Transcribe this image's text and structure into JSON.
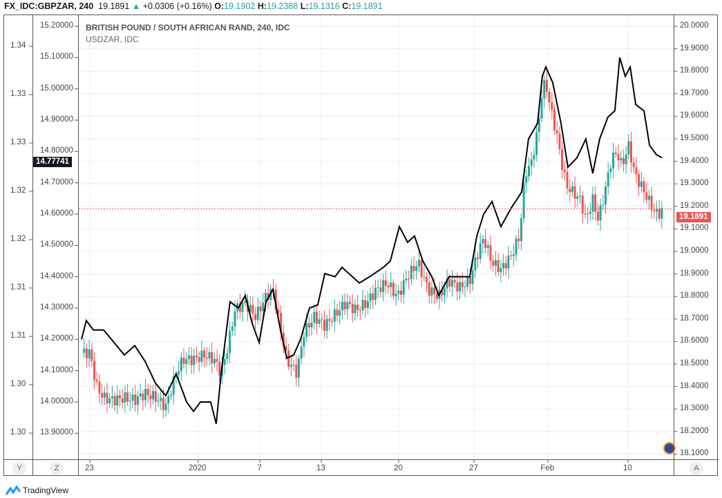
{
  "header": {
    "symbol": "FX_IDC:GBPZAR, 240",
    "last": "19.1891",
    "change": "+0.0306 (+0.16%)",
    "o_label": "O:",
    "o": "19.1902",
    "h_label": "H:",
    "h": "19.2388",
    "l_label": "L:",
    "l": "19.1316",
    "c_label": "C:",
    "c": "19.1891"
  },
  "legend": {
    "title": "BRITISH POUND / SOUTH AFRICAN RAND, 240, IDC",
    "compare": "USDZAR, IDC"
  },
  "buttons": {
    "y": "Y",
    "z": "Z",
    "a": "A"
  },
  "brand": "TradingView",
  "colors": {
    "up": "#26a69a",
    "down": "#ef5350",
    "line": "#000000",
    "grid": "#e6eef5"
  },
  "chart_data": {
    "type": "candlestick+line",
    "title": "BRITISH POUND / SOUTH AFRICAN RAND, 240, IDC",
    "left_axis_1": {
      "ticks": [
        "1.34",
        "1.33",
        "1.33",
        "1.32",
        "1.32",
        "1.31",
        "1.31",
        "1.30",
        "1.30"
      ]
    },
    "left_axis_2": {
      "ticks": [
        "15.20000",
        "15.10000",
        "15.00000",
        "14.90000",
        "14.80000",
        "14.70000",
        "14.60000",
        "14.50000",
        "14.40000",
        "14.30000",
        "14.20000",
        "14.10000",
        "14.00000",
        "13.90000"
      ],
      "range": [
        13.83,
        15.24
      ],
      "last_badge": "14.77741"
    },
    "right_axis": {
      "ticks": [
        "20.0000",
        "19.9000",
        "19.8000",
        "19.7000",
        "19.6000",
        "19.5000",
        "19.4000",
        "19.3000",
        "19.2000",
        "19.1000",
        "19.0000",
        "18.9000",
        "18.8000",
        "18.7000",
        "18.6000",
        "18.5000",
        "18.4000",
        "18.3000",
        "18.2000",
        "18.1000"
      ],
      "range": [
        18.08,
        20.05
      ],
      "last_badge": "19.1891",
      "last": 19.1891
    },
    "x_ticks": [
      {
        "label": "23",
        "day": 0
      },
      {
        "label": "2020",
        "day": 7.07
      },
      {
        "label": "7",
        "day": 11.08
      },
      {
        "label": "13",
        "day": 15.09
      },
      {
        "label": "20",
        "day": 20.14
      },
      {
        "label": "27",
        "day": 25.05
      },
      {
        "label": "Feb",
        "day": 29.86
      },
      {
        "label": "10",
        "day": 35.09
      }
    ],
    "gbpzar_closes": [
      [
        -0.54,
        18.55
      ],
      [
        0,
        18.55
      ],
      [
        0.45,
        18.4
      ],
      [
        0.9,
        18.35
      ],
      [
        1.58,
        18.34
      ],
      [
        2.25,
        18.35
      ],
      [
        2.93,
        18.34
      ],
      [
        3.6,
        18.37
      ],
      [
        4.28,
        18.35
      ],
      [
        4.95,
        18.31
      ],
      [
        5.63,
        18.46
      ],
      [
        6.08,
        18.52
      ],
      [
        6.76,
        18.52
      ],
      [
        7.43,
        18.54
      ],
      [
        8.11,
        18.52
      ],
      [
        8.56,
        18.46
      ],
      [
        9.01,
        18.58
      ],
      [
        9.46,
        18.74
      ],
      [
        10.14,
        18.77
      ],
      [
        10.81,
        18.71
      ],
      [
        11.49,
        18.8
      ],
      [
        11.94,
        18.83
      ],
      [
        12.39,
        18.67
      ],
      [
        12.84,
        18.52
      ],
      [
        13.51,
        18.46
      ],
      [
        13.96,
        18.64
      ],
      [
        14.64,
        18.71
      ],
      [
        15.32,
        18.67
      ],
      [
        15.99,
        18.72
      ],
      [
        16.67,
        18.77
      ],
      [
        17.34,
        18.74
      ],
      [
        18.02,
        18.77
      ],
      [
        18.69,
        18.83
      ],
      [
        19.37,
        18.86
      ],
      [
        20.05,
        18.8
      ],
      [
        20.72,
        18.89
      ],
      [
        21.4,
        18.95
      ],
      [
        22.07,
        18.83
      ],
      [
        22.75,
        18.8
      ],
      [
        23.42,
        18.87
      ],
      [
        24.1,
        18.84
      ],
      [
        24.77,
        18.87
      ],
      [
        25.23,
        18.98
      ],
      [
        25.68,
        19.06
      ],
      [
        26.22,
        18.95
      ],
      [
        26.8,
        18.92
      ],
      [
        27.48,
        18.98
      ],
      [
        28.02,
        19.07
      ],
      [
        28.38,
        19.35
      ],
      [
        28.74,
        19.38
      ],
      [
        29.19,
        19.53
      ],
      [
        29.5,
        19.72
      ],
      [
        29.73,
        19.75
      ],
      [
        30.05,
        19.63
      ],
      [
        30.41,
        19.53
      ],
      [
        30.72,
        19.41
      ],
      [
        31.08,
        19.29
      ],
      [
        31.53,
        19.26
      ],
      [
        31.98,
        19.23
      ],
      [
        32.34,
        19.14
      ],
      [
        32.79,
        19.23
      ],
      [
        33.15,
        19.14
      ],
      [
        33.56,
        19.26
      ],
      [
        34.01,
        19.41
      ],
      [
        34.37,
        19.44
      ],
      [
        34.68,
        19.38
      ],
      [
        35.14,
        19.47
      ],
      [
        35.5,
        19.35
      ],
      [
        35.95,
        19.29
      ],
      [
        36.4,
        19.23
      ],
      [
        36.85,
        19.17
      ],
      [
        37.21,
        19.17
      ],
      [
        37.39,
        19.19
      ]
    ],
    "usdzar_line": [
      [
        -0.54,
        14.2
      ],
      [
        -0.23,
        14.26
      ],
      [
        0.23,
        14.23
      ],
      [
        0.9,
        14.23
      ],
      [
        1.58,
        14.19
      ],
      [
        2.25,
        14.15
      ],
      [
        2.93,
        14.18
      ],
      [
        3.6,
        14.13
      ],
      [
        4.28,
        14.06
      ],
      [
        4.95,
        14.02
      ],
      [
        5.63,
        14.09
      ],
      [
        6.31,
        14.0
      ],
      [
        6.76,
        13.97
      ],
      [
        7.21,
        14.0
      ],
      [
        7.88,
        14.0
      ],
      [
        8.24,
        13.93
      ],
      [
        8.56,
        14.09
      ],
      [
        9.14,
        14.32
      ],
      [
        9.68,
        14.3
      ],
      [
        10.14,
        14.34
      ],
      [
        10.59,
        14.25
      ],
      [
        11.04,
        14.19
      ],
      [
        11.49,
        14.32
      ],
      [
        11.94,
        14.36
      ],
      [
        12.39,
        14.24
      ],
      [
        12.84,
        14.14
      ],
      [
        13.29,
        14.15
      ],
      [
        13.74,
        14.2
      ],
      [
        14.32,
        14.3
      ],
      [
        14.86,
        14.31
      ],
      [
        15.32,
        14.41
      ],
      [
        15.99,
        14.4
      ],
      [
        16.44,
        14.43
      ],
      [
        17.12,
        14.4
      ],
      [
        17.57,
        14.38
      ],
      [
        18.24,
        14.4
      ],
      [
        19.14,
        14.43
      ],
      [
        19.59,
        14.45
      ],
      [
        20.18,
        14.56
      ],
      [
        20.72,
        14.51
      ],
      [
        21.17,
        14.53
      ],
      [
        21.71,
        14.45
      ],
      [
        22.3,
        14.4
      ],
      [
        22.75,
        14.34
      ],
      [
        23.42,
        14.4
      ],
      [
        24.1,
        14.4
      ],
      [
        24.77,
        14.4
      ],
      [
        25.23,
        14.53
      ],
      [
        25.68,
        14.6
      ],
      [
        26.22,
        14.64
      ],
      [
        26.8,
        14.56
      ],
      [
        27.48,
        14.62
      ],
      [
        28.15,
        14.67
      ],
      [
        28.6,
        14.84
      ],
      [
        29.19,
        14.89
      ],
      [
        29.5,
        15.04
      ],
      [
        29.73,
        15.07
      ],
      [
        30.18,
        15.02
      ],
      [
        30.72,
        14.89
      ],
      [
        31.17,
        14.75
      ],
      [
        31.76,
        14.78
      ],
      [
        32.34,
        14.84
      ],
      [
        32.79,
        14.73
      ],
      [
        33.24,
        14.84
      ],
      [
        33.78,
        14.91
      ],
      [
        34.23,
        14.93
      ],
      [
        34.55,
        15.1
      ],
      [
        34.91,
        15.04
      ],
      [
        35.23,
        15.07
      ],
      [
        35.59,
        14.95
      ],
      [
        36.13,
        14.93
      ],
      [
        36.49,
        14.82
      ],
      [
        36.94,
        14.79
      ],
      [
        37.3,
        14.78
      ]
    ]
  }
}
